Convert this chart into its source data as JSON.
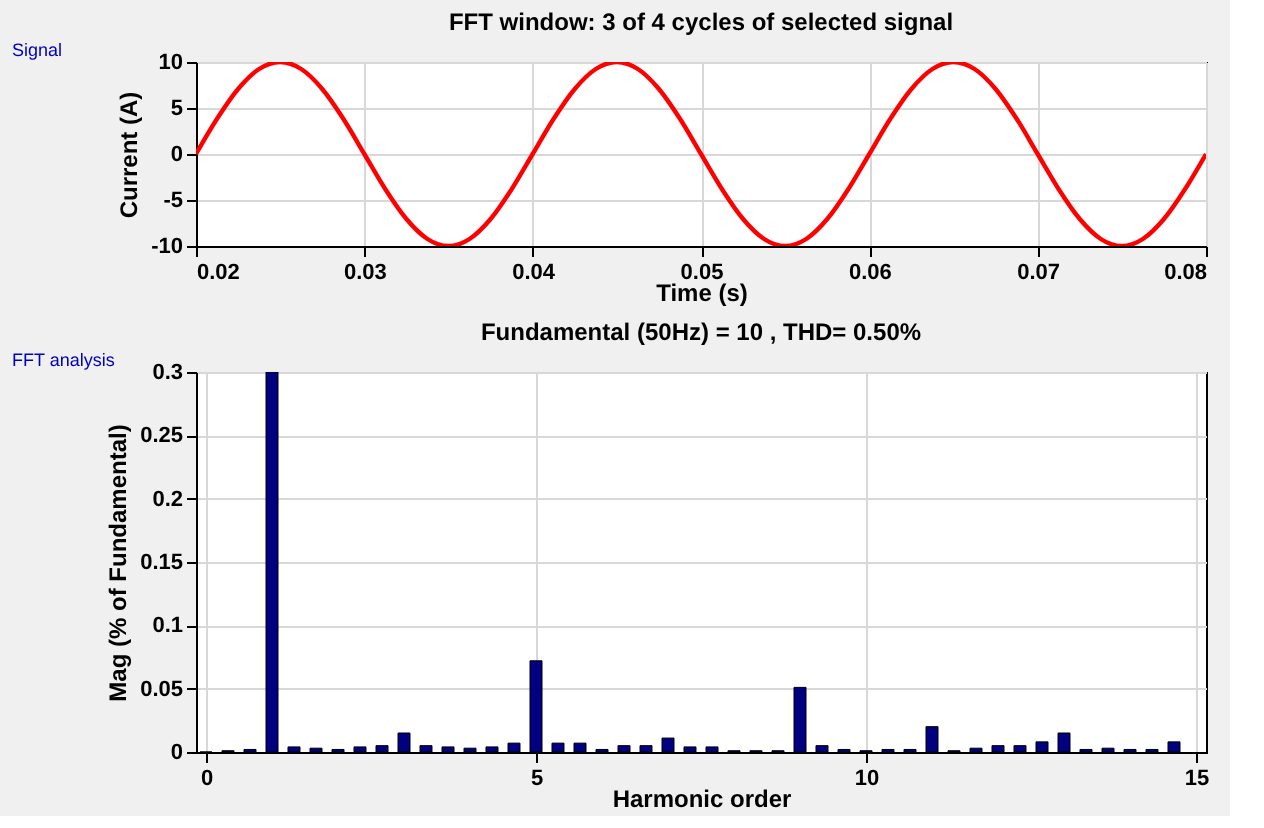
{
  "chart_data": [
    {
      "type": "line",
      "title": "FFT window: 3 of 4 cycles of selected signal",
      "xlabel": "Time (s)",
      "ylabel": "Current (A)",
      "annotations": [
        "Signal"
      ],
      "x": [
        0.02,
        0.02125,
        0.0225,
        0.02375,
        0.025,
        0.02625,
        0.0275,
        0.02875,
        0.03,
        0.03125,
        0.0325,
        0.03375,
        0.035,
        0.03625,
        0.0375,
        0.03875,
        0.04,
        0.04125,
        0.0425,
        0.04375,
        0.045,
        0.04625,
        0.0475,
        0.04875,
        0.05,
        0.05125,
        0.0525,
        0.05375,
        0.055,
        0.05625,
        0.0575,
        0.05875,
        0.06,
        0.06125,
        0.0625,
        0.06375,
        0.065,
        0.06625,
        0.0675,
        0.06875,
        0.07,
        0.07125,
        0.0725,
        0.07375,
        0.075,
        0.07625,
        0.0775,
        0.07875,
        0.08
      ],
      "series": [
        {
          "color": "#ff0000",
          "values": [
            0,
            3.83,
            7.07,
            9.24,
            10,
            9.24,
            7.07,
            3.83,
            0,
            -3.83,
            -7.07,
            -9.24,
            -10,
            -9.24,
            -7.07,
            -3.83,
            0,
            3.83,
            7.07,
            9.24,
            10,
            9.24,
            7.07,
            3.83,
            0,
            -3.83,
            -7.07,
            -9.24,
            -10,
            -9.24,
            -7.07,
            -3.83,
            0,
            3.83,
            7.07,
            9.24,
            10,
            9.24,
            7.07,
            3.83,
            0,
            -3.83,
            -7.07,
            -9.24,
            -10,
            -9.24,
            -7.07,
            -3.83,
            0
          ]
        }
      ],
      "xlim": [
        0.02,
        0.08
      ],
      "xticks": [
        0.02,
        0.03,
        0.04,
        0.05,
        0.06,
        0.07,
        0.08
      ],
      "ylim": [
        -10,
        10
      ],
      "yticks": [
        -10,
        -5,
        0,
        5,
        10
      ],
      "grid": true,
      "line_style": "solid",
      "marker": "none"
    },
    {
      "type": "bar",
      "title": "Fundamental (50Hz) = 10 , THD= 0.50%",
      "xlabel": "Harmonic order",
      "ylabel": "Mag (% of Fundamental)",
      "annotations": [
        "FFT analysis"
      ],
      "x": [
        0,
        0.3333,
        0.6667,
        1,
        1.3333,
        1.6667,
        2,
        2.3333,
        2.6667,
        3,
        3.3333,
        3.6667,
        4,
        4.3333,
        4.6667,
        5,
        5.3333,
        5.6667,
        6,
        6.3333,
        6.6667,
        7,
        7.3333,
        7.6667,
        8,
        8.3333,
        8.6667,
        9,
        9.3333,
        9.6667,
        10,
        10.3333,
        10.6667,
        11,
        11.3333,
        11.6667,
        12,
        12.3333,
        12.6667,
        13,
        13.3333,
        13.6667,
        14,
        14.3333,
        14.6667
      ],
      "series": [
        {
          "color": "#000080",
          "values": [
            0,
            0.001,
            0.002,
            0.3,
            0.004,
            0.003,
            0.002,
            0.004,
            0.005,
            0.015,
            0.005,
            0.004,
            0.003,
            0.004,
            0.007,
            0.072,
            0.007,
            0.007,
            0.002,
            0.005,
            0.005,
            0.011,
            0.004,
            0.004,
            0.001,
            0.001,
            0.001,
            0.051,
            0.005,
            0.002,
            0.001,
            0.002,
            0.002,
            0.02,
            0.001,
            0.003,
            0.005,
            0.005,
            0.008,
            0.015,
            0.002,
            0.003,
            0.002,
            0.002,
            0.008
          ]
        }
      ],
      "xlim": [
        0,
        15
      ],
      "xticks": [
        0,
        5,
        10,
        15
      ],
      "ylim": [
        0,
        0.3
      ],
      "yticks": [
        0,
        0.05,
        0.1,
        0.15,
        0.2,
        0.25,
        0.3
      ],
      "grid": true
    }
  ]
}
